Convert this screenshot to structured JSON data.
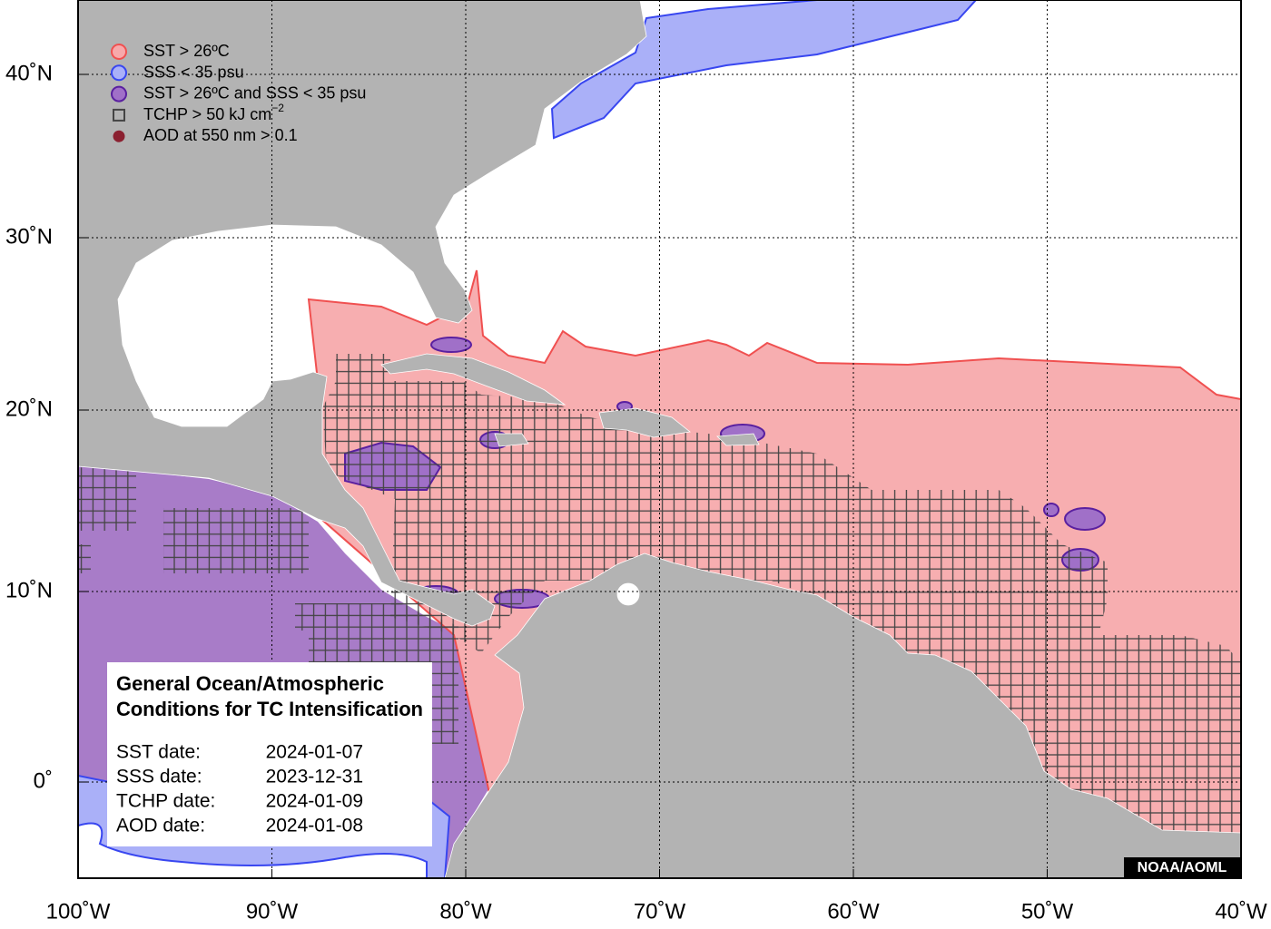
{
  "map": {
    "legend": [
      {
        "label": "SST > 26ºC",
        "color": "#f7a9ab",
        "edge": "#f05050"
      },
      {
        "label": "SSS < 35 psu",
        "color": "#aab0f8",
        "edge": "#3846f0"
      },
      {
        "label": "SST > 26ºC and SSS < 35 psu",
        "color": "#a070c8",
        "edge": "#5a20a0"
      },
      {
        "label": "TCHP > 50 kJ cm",
        "superscript": "−2",
        "color": "none",
        "edge": "#444444"
      },
      {
        "label": "AOD at 550 nm > 0.1",
        "color": "#8b2030",
        "edge": "#8b2030"
      }
    ],
    "info": {
      "title": [
        "General Ocean/Atmospheric",
        "Conditions for TC Intensification"
      ],
      "dates": [
        {
          "label": "SST date:",
          "value": "2024-01-07"
        },
        {
          "label": "SSS date:",
          "value": "2023-12-31"
        },
        {
          "label": "TCHP date:",
          "value": "2024-01-09"
        },
        {
          "label": "AOD date:",
          "value": "2024-01-08"
        }
      ]
    },
    "credit": "NOAA/AOML",
    "lon_ticks": [
      {
        "value": -100,
        "label": "100˚W"
      },
      {
        "value": -90,
        "label": "90˚W"
      },
      {
        "value": -80,
        "label": "80˚W"
      },
      {
        "value": -70,
        "label": "70˚W"
      },
      {
        "value": -60,
        "label": "60˚W"
      },
      {
        "value": -50,
        "label": "50˚W"
      },
      {
        "value": -40,
        "label": "40˚W"
      }
    ],
    "lat_ticks": [
      {
        "value": 0,
        "label": "0˚"
      },
      {
        "value": 10,
        "label": "10˚N"
      },
      {
        "value": 20,
        "label": "20˚N"
      },
      {
        "value": 30,
        "label": "30˚N"
      },
      {
        "value": 40,
        "label": "40˚N"
      }
    ]
  }
}
